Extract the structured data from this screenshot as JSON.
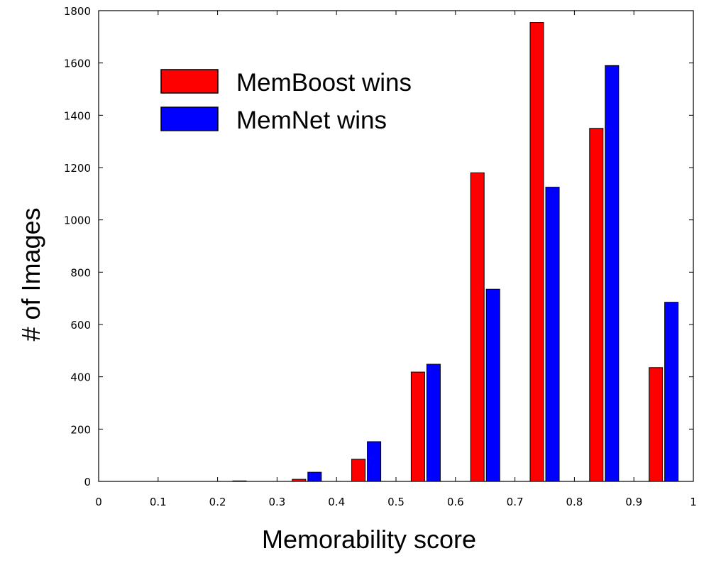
{
  "chart_data": {
    "type": "bar",
    "xlabel": "Memorability score",
    "ylabel": "# of Images",
    "xlim": [
      0,
      1
    ],
    "ylim": [
      0,
      1800
    ],
    "xticks": [
      0,
      0.1,
      0.2,
      0.3,
      0.4,
      0.5,
      0.6,
      0.7,
      0.8,
      0.9,
      1
    ],
    "xtick_labels": [
      "0",
      "0.1",
      "0.2",
      "0.3",
      "0.4",
      "0.5",
      "0.6",
      "0.7",
      "0.8",
      "0.9",
      "1"
    ],
    "yticks": [
      0,
      200,
      400,
      600,
      800,
      1000,
      1200,
      1400,
      1600,
      1800
    ],
    "ytick_labels": [
      "0",
      "200",
      "400",
      "600",
      "800",
      "1000",
      "1200",
      "1400",
      "1600",
      "1800"
    ],
    "bin_centers": [
      0.05,
      0.15,
      0.25,
      0.35,
      0.45,
      0.55,
      0.65,
      0.75,
      0.85,
      0.95
    ],
    "grid": false,
    "legend_position": "top-left",
    "series": [
      {
        "name": "MemBoost wins",
        "color": "#ff0000",
        "values": [
          0,
          0,
          2,
          8,
          85,
          418,
          1180,
          1755,
          1350,
          435
        ]
      },
      {
        "name": "MemNet wins",
        "color": "#0000ff",
        "values": [
          0,
          0,
          0,
          35,
          152,
          448,
          735,
          1125,
          1590,
          685
        ]
      }
    ]
  }
}
